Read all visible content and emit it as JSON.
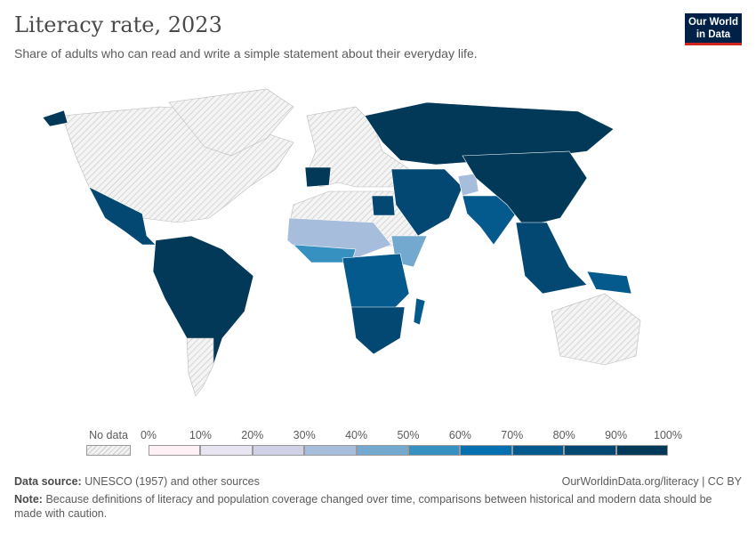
{
  "header": {
    "title": "Literacy rate, 2023",
    "subtitle": "Share of adults who can read and write a simple statement about their everyday life.",
    "logo_line1": "Our World",
    "logo_line2": "in Data"
  },
  "legend": {
    "no_data_label": "No data",
    "ticks": [
      "0%",
      "10%",
      "20%",
      "30%",
      "40%",
      "50%",
      "60%",
      "70%",
      "80%",
      "90%",
      "100%"
    ],
    "bin_colors": [
      "#fff0f6",
      "#e9e4f1",
      "#d0d1e6",
      "#a6bddb",
      "#74a9cf",
      "#3690c0",
      "#0570b0",
      "#045a8d",
      "#034873",
      "#023858"
    ]
  },
  "colors": {
    "no_data": "#e6e6e6",
    "border": "#ffffff"
  },
  "footer": {
    "source_label": "Data source:",
    "source": "UNESCO (1957) and other sources",
    "link": "OurWorldinData.org/literacy | CC BY",
    "note_label": "Note:",
    "note": "Because definitions of literacy and population coverage changed over time, comparisons between historical and modern data should be made with caution."
  }
}
